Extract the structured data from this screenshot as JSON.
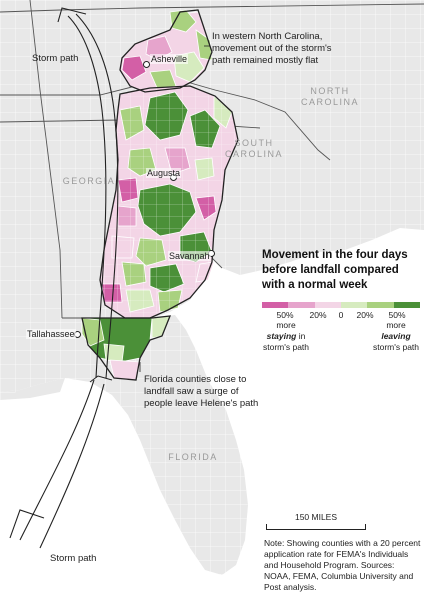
{
  "map": {
    "state_labels": {
      "north_carolina": "NORTH\nCAROLINA",
      "south_carolina": "SOUTH\nCAROLINA",
      "georgia": "GEORGIA",
      "florida": "FLORIDA"
    },
    "cities": {
      "asheville": "Asheville",
      "augusta": "Augusta",
      "savannah": "Savannah",
      "tallahassee": "Tallahassee"
    },
    "storm_path_labels": [
      "Storm path",
      "Storm path"
    ],
    "annotations": {
      "north_carolina": "In western North Carolina, movement out of the storm's path remained mostly flat",
      "florida": "Florida counties close to landfall saw a surge of people leave Helene's path"
    },
    "colors": {
      "strong_staying": "#d35fa6",
      "staying": "#e6a4cc",
      "light_staying": "#f3d5e6",
      "neutral": "#f4f0f2",
      "light_leaving": "#d6ebbf",
      "leaving": "#a9d17f",
      "strong_leaving": "#4b9038",
      "base_county": "#e9e9e9",
      "county_border": "#ffffff",
      "state_border": "#222222"
    }
  },
  "legend": {
    "title": "Movement in the four days before landfall compared with a normal week",
    "ticks": [
      "50%",
      "20%",
      "0",
      "20%",
      "50%"
    ],
    "left_caption_top": "more",
    "left_caption_bold": "staying",
    "left_caption_rest": "in storm's path",
    "right_caption_top": "more",
    "right_caption_bold": "leaving",
    "right_caption_rest": "storm's path"
  },
  "scale": {
    "label": "150 MILES"
  },
  "note": "Note: Showing counties with a 20 percent application rate for FEMA's Individuals and Household Program. Sources: NOAA, FEMA, Columbia University and Post analysis."
}
